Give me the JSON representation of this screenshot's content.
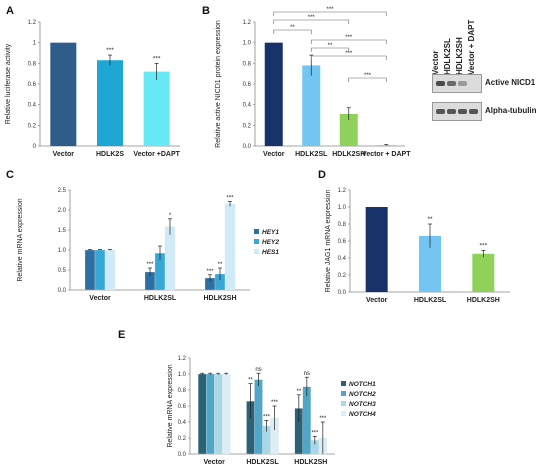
{
  "colors": {
    "dark_blue": "#2f5d8a",
    "mid_blue": "#1ea7d5",
    "cyan": "#67e8f5",
    "navy": "#17336a",
    "light_blue": "#74c6f2",
    "green": "#8fd15a",
    "gray": "#c0c0c0",
    "dark_teal": "#2a6277",
    "teal": "#4fa6c6",
    "light_teal": "#a8d8e8",
    "very_light_blue": "#dbeef8",
    "blue_c1": "#2e6fa3",
    "blue_c2": "#35a8d6",
    "blue_c3": "#d0ebf8"
  },
  "chart_data": [
    {
      "panel": "A",
      "type": "bar",
      "ylabel": "Relative luciferase activity",
      "categories": [
        "Vector",
        "HDLK2S",
        "Vector +DAPT"
      ],
      "values": [
        1.0,
        0.83,
        0.72
      ],
      "errors": [
        0.0,
        0.05,
        0.08
      ],
      "stars": [
        "",
        "***",
        "***"
      ],
      "ylim": [
        0,
        1.2
      ],
      "yticks": [
        "0",
        "0.2",
        "0.4",
        "0.6",
        "0.8",
        "1",
        "1.2"
      ],
      "colors": [
        "#2f5d8a",
        "#1ea7d5",
        "#67e8f5"
      ]
    },
    {
      "panel": "B",
      "type": "bar",
      "ylabel": "Relative active NICD1 protein expression",
      "categories": [
        "Vector",
        "HDLK2SL",
        "HDLK2SH",
        "Vector + DAPT"
      ],
      "values": [
        1.0,
        0.78,
        0.31,
        0.01
      ],
      "errors": [
        0.0,
        0.1,
        0.06,
        0.005
      ],
      "ylim": [
        0,
        1.2
      ],
      "yticks": [
        "0.0",
        "0.2",
        "0.4",
        "0.6",
        "0.8",
        "1.0",
        "1.2"
      ],
      "colors": [
        "#17336a",
        "#74c6f2",
        "#8fd15a",
        "#c0c0c0"
      ],
      "comparisons": [
        "***",
        "***",
        "**",
        "***",
        "**",
        "***",
        "***"
      ],
      "blot": {
        "lanes": [
          "Vector",
          "HDLK2SL",
          "HDLK2SH",
          "Vector + DAPT"
        ],
        "rows": [
          "Active NICD1",
          "Alpha-tubulin"
        ]
      }
    },
    {
      "panel": "C",
      "type": "bar",
      "ylabel": "Relative mRNA expression",
      "categories": [
        "Vector",
        "HDLK2SL",
        "HDLK2SH"
      ],
      "series": [
        {
          "name": "HEY1",
          "values": [
            1.0,
            0.45,
            0.3
          ],
          "errors": [
            0.01,
            0.1,
            0.08
          ],
          "stars": [
            "",
            "***",
            "***"
          ]
        },
        {
          "name": "HEY2",
          "values": [
            1.0,
            0.92,
            0.4
          ],
          "errors": [
            0.01,
            0.18,
            0.15
          ],
          "stars": [
            "",
            "",
            "**"
          ]
        },
        {
          "name": "HES1",
          "values": [
            1.0,
            1.58,
            2.15
          ],
          "errors": [
            0.01,
            0.2,
            0.06
          ],
          "stars": [
            "",
            "*",
            "***"
          ]
        }
      ],
      "ylim": [
        0,
        2.5
      ],
      "yticks": [
        "0.0",
        "0.5",
        "1.0",
        "1.5",
        "2.0",
        "2.5"
      ],
      "colors": [
        "#2e6fa3",
        "#35a8d6",
        "#d0ebf8"
      ]
    },
    {
      "panel": "D",
      "type": "bar",
      "ylabel": "Relative JAG1 mRNA expression",
      "categories": [
        "Vector",
        "HDLK2SL",
        "HDLK2SH"
      ],
      "values": [
        1.0,
        0.66,
        0.45
      ],
      "errors": [
        0.0,
        0.14,
        0.04
      ],
      "stars": [
        "",
        "**",
        "***"
      ],
      "ylim": [
        0,
        1.2
      ],
      "yticks": [
        "0.0",
        "0.2",
        "0.4",
        "0.6",
        "0.8",
        "1.0",
        "1.2"
      ],
      "colors": [
        "#17336a",
        "#74c6f2",
        "#8fd15a"
      ]
    },
    {
      "panel": "E",
      "type": "bar",
      "ylabel": "Relative mRNA expression",
      "categories": [
        "Vector",
        "HDLK2SL",
        "HDLK2SH"
      ],
      "series": [
        {
          "name": "NOTCH1",
          "values": [
            1.0,
            0.66,
            0.57
          ],
          "errors": [
            0.01,
            0.22,
            0.17
          ],
          "stars": [
            "",
            "**",
            "**"
          ]
        },
        {
          "name": "NOTCH2",
          "values": [
            1.0,
            0.93,
            0.84
          ],
          "errors": [
            0.01,
            0.08,
            0.12
          ],
          "stars": [
            "",
            "ns",
            "ns"
          ]
        },
        {
          "name": "NOTCH3",
          "values": [
            1.0,
            0.35,
            0.17
          ],
          "errors": [
            0.01,
            0.07,
            0.05
          ],
          "stars": [
            "",
            "***",
            "***"
          ]
        },
        {
          "name": "NOTCH4",
          "values": [
            1.0,
            0.45,
            0.2
          ],
          "errors": [
            0.01,
            0.15,
            0.2
          ],
          "stars": [
            "",
            "***",
            "***"
          ]
        }
      ],
      "ylim": [
        0,
        1.2
      ],
      "yticks": [
        "0.0",
        "0.2",
        "0.4",
        "0.6",
        "0.8",
        "1.0",
        "1.2"
      ],
      "colors": [
        "#2a6277",
        "#4fa6c6",
        "#a8d8e8",
        "#dbeef8"
      ]
    }
  ]
}
